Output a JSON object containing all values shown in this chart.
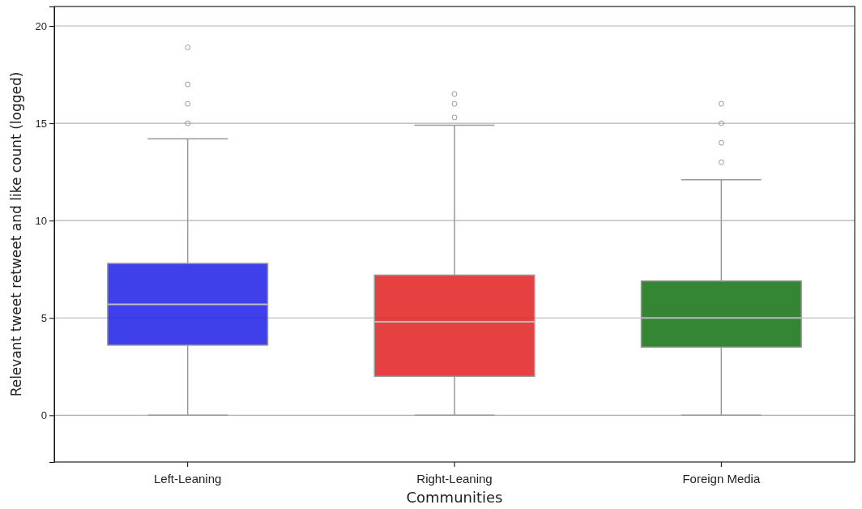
{
  "chart_data": {
    "type": "box",
    "xlabel": "Communities",
    "ylabel": "Relevant tweet retweet and like count (logged)",
    "categories": [
      "Left-Leaning",
      "Right-Leaning",
      "Foreign Media"
    ],
    "colors": [
      "#1f1fe6",
      "#e02020",
      "#107010"
    ],
    "boxes": [
      {
        "low": 0,
        "q1": 3.6,
        "median": 5.7,
        "q3": 7.8,
        "high": 14.2,
        "outliers": [
          15,
          16,
          17,
          18.9
        ]
      },
      {
        "low": 0,
        "q1": 2.0,
        "median": 4.8,
        "q3": 7.2,
        "high": 14.9,
        "outliers": [
          15.3,
          16,
          16.5
        ]
      },
      {
        "low": 0,
        "q1": 3.5,
        "median": 5.0,
        "q3": 6.9,
        "high": 12.1,
        "outliers": [
          13,
          14,
          15,
          16
        ]
      }
    ],
    "ylim": [
      -2.4,
      21
    ],
    "yticks": [
      0,
      5,
      10,
      15,
      20
    ],
    "grid": "y"
  }
}
